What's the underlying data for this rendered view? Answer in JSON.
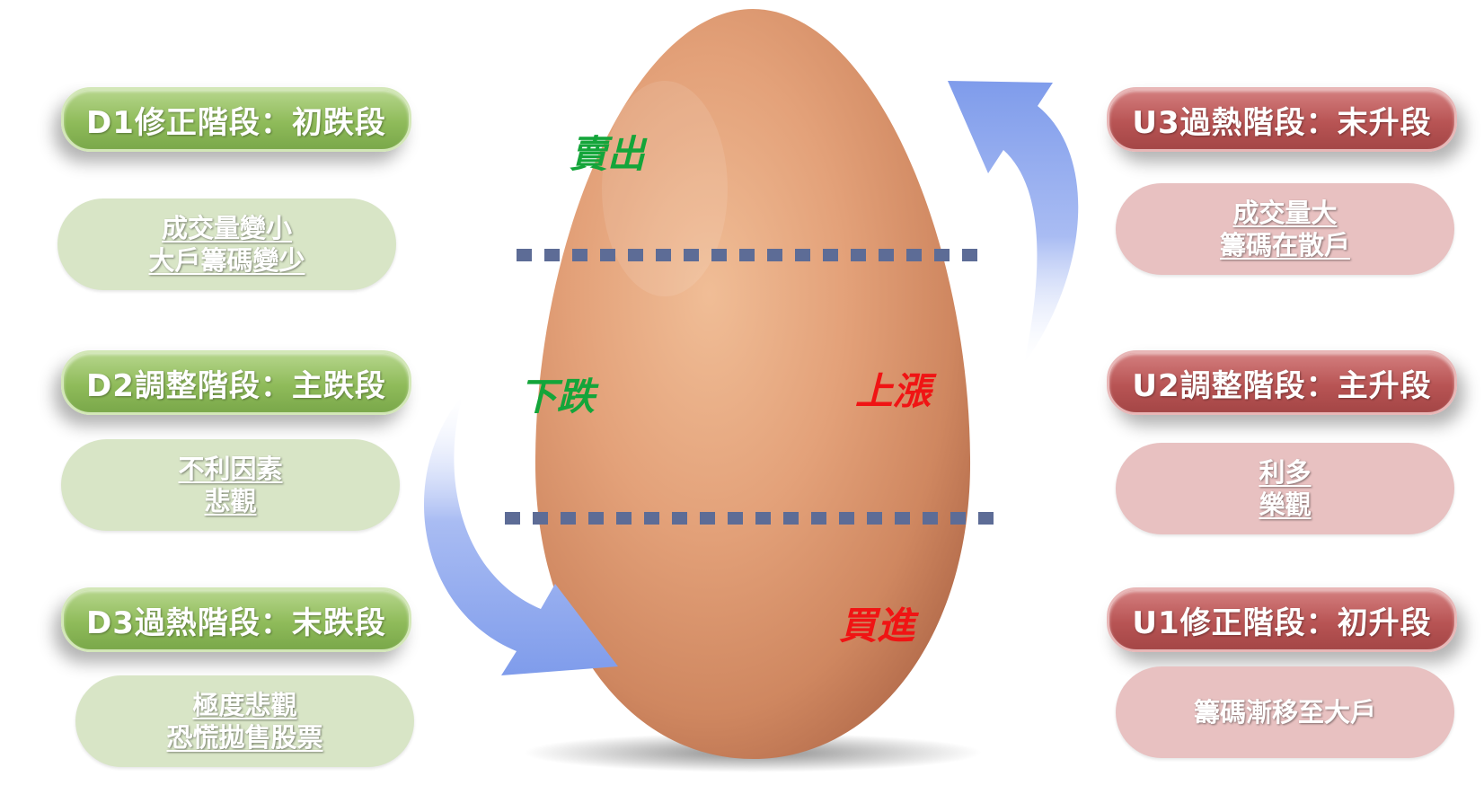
{
  "colors": {
    "green_label": "#14a53a",
    "red_label": "#f01414",
    "arrow": "#8fa9ef",
    "dash": "#5d6c96"
  },
  "left": {
    "stages": [
      {
        "title": "D1修正階段：初跌段",
        "desc": [
          "成交量變小",
          "大戶籌碼變少"
        ]
      },
      {
        "title": "D2調整階段：主跌段",
        "desc": [
          "不利因素",
          "悲觀"
        ]
      },
      {
        "title": "D3過熱階段：末跌段",
        "desc": [
          "極度悲觀",
          "恐慌拋售股票"
        ]
      }
    ]
  },
  "right": {
    "stages": [
      {
        "title": "U3過熱階段：末升段",
        "desc": [
          "成交量大",
          "籌碼在散戶"
        ]
      },
      {
        "title": "U2調整階段：主升段",
        "desc": [
          "利多",
          "樂觀"
        ]
      },
      {
        "title": "U1修正階段：初升段",
        "desc": [
          "籌碼漸移至大戶"
        ]
      }
    ]
  },
  "egg": {
    "sell": "賣出",
    "fall": "下跌",
    "rise": "上漲",
    "buy": "買進"
  }
}
